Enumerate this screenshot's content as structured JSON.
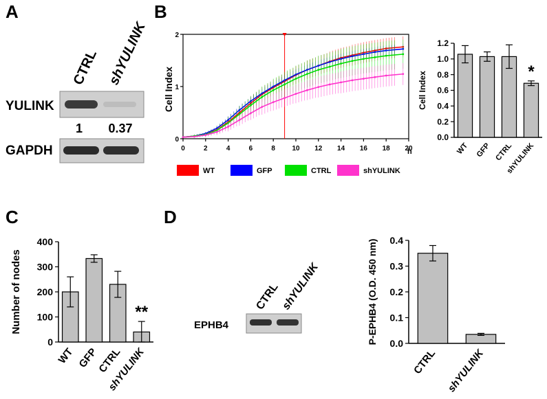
{
  "panels": {
    "A": "A",
    "B": "B",
    "C": "C",
    "D": "D"
  },
  "blotA": {
    "lanes": [
      "CTRL",
      "shYULINK"
    ],
    "rows": [
      "YULINK",
      "GAPDH"
    ],
    "quant": [
      "1",
      "0.37"
    ]
  },
  "blotD": {
    "lanes": [
      "CTRL",
      "shYULINK"
    ],
    "row": "EPHB4"
  },
  "colors": {
    "WT": "#ff0000",
    "GFP": "#0000ff",
    "CTRL": "#00e000",
    "shYULINK": "#ff33cc",
    "bar": "#c0c0c0",
    "marker": "#ff0000"
  },
  "chart_data": [
    {
      "id": "B-line",
      "type": "line",
      "ylabel": "Cell Index",
      "x_unit_label": "h",
      "xlim": [
        0,
        20
      ],
      "ylim": [
        0,
        2
      ],
      "xticks": [
        0,
        2,
        4,
        6,
        8,
        10,
        12,
        14,
        16,
        18,
        20
      ],
      "yticks": [
        0,
        1,
        2
      ],
      "marker_x": 9,
      "x": [
        0,
        1,
        2,
        3,
        4,
        5,
        6,
        7,
        8,
        9,
        10,
        11,
        12,
        13,
        14,
        15,
        16,
        17,
        18,
        19.5
      ],
      "series": [
        {
          "name": "WT",
          "color": "#ff0000",
          "values": [
            0.03,
            0.05,
            0.09,
            0.17,
            0.32,
            0.5,
            0.68,
            0.85,
            0.98,
            1.1,
            1.22,
            1.32,
            1.4,
            1.48,
            1.55,
            1.6,
            1.65,
            1.69,
            1.73,
            1.76
          ],
          "err": [
            0.01,
            0.02,
            0.04,
            0.07,
            0.1,
            0.12,
            0.13,
            0.14,
            0.15,
            0.16,
            0.17,
            0.18,
            0.18,
            0.19,
            0.19,
            0.2,
            0.2,
            0.2,
            0.2,
            0.2
          ]
        },
        {
          "name": "GFP",
          "color": "#0000ff",
          "values": [
            0.03,
            0.05,
            0.1,
            0.2,
            0.36,
            0.55,
            0.72,
            0.87,
            1.0,
            1.12,
            1.23,
            1.32,
            1.4,
            1.47,
            1.53,
            1.58,
            1.62,
            1.66,
            1.69,
            1.72
          ],
          "err": [
            0.01,
            0.02,
            0.03,
            0.05,
            0.07,
            0.08,
            0.08,
            0.09,
            0.09,
            0.1,
            0.1,
            0.1,
            0.1,
            0.1,
            0.1,
            0.1,
            0.1,
            0.1,
            0.1,
            0.1
          ]
        },
        {
          "name": "CTRL",
          "color": "#00e000",
          "values": [
            0.03,
            0.05,
            0.08,
            0.16,
            0.3,
            0.47,
            0.64,
            0.8,
            0.93,
            1.04,
            1.15,
            1.24,
            1.32,
            1.38,
            1.44,
            1.49,
            1.53,
            1.56,
            1.59,
            1.62
          ],
          "err": [
            0.01,
            0.03,
            0.05,
            0.08,
            0.12,
            0.16,
            0.18,
            0.2,
            0.22,
            0.24,
            0.25,
            0.26,
            0.27,
            0.27,
            0.28,
            0.28,
            0.28,
            0.28,
            0.28,
            0.28
          ]
        },
        {
          "name": "shYULINK",
          "color": "#ff33cc",
          "values": [
            0.03,
            0.04,
            0.07,
            0.13,
            0.23,
            0.36,
            0.49,
            0.61,
            0.7,
            0.78,
            0.86,
            0.93,
            0.99,
            1.04,
            1.08,
            1.12,
            1.15,
            1.18,
            1.21,
            1.24
          ],
          "err": [
            0.01,
            0.02,
            0.04,
            0.06,
            0.09,
            0.11,
            0.13,
            0.15,
            0.16,
            0.17,
            0.18,
            0.19,
            0.2,
            0.2,
            0.21,
            0.21,
            0.21,
            0.21,
            0.21,
            0.21
          ]
        }
      ]
    },
    {
      "id": "B-bar",
      "type": "bar",
      "ylabel": "Cell Index",
      "categories": [
        "WT",
        "GFP",
        "CTRL",
        "shYULINK"
      ],
      "values": [
        1.06,
        1.03,
        1.03,
        0.69
      ],
      "errors": [
        0.11,
        0.06,
        0.15,
        0.03
      ],
      "ylim": [
        0,
        1.2
      ],
      "yticks": [
        0.0,
        0.2,
        0.4,
        0.6,
        0.8,
        1.0,
        1.2
      ],
      "ytick_labels": [
        "0.0",
        "0.2",
        "0.4",
        "0.6",
        "0.8",
        "1.0",
        "1.2"
      ],
      "annotations": [
        {
          "category": "shYULINK",
          "text": "*"
        }
      ]
    },
    {
      "id": "C",
      "type": "bar",
      "ylabel": "Number of nodes",
      "categories": [
        "WT",
        "GFP",
        "CTRL",
        "shYULINK"
      ],
      "values": [
        200,
        333,
        230,
        40
      ],
      "errors": [
        60,
        15,
        52,
        42
      ],
      "ylim": [
        0,
        400
      ],
      "yticks": [
        0,
        100,
        200,
        300,
        400
      ],
      "ytick_labels": [
        "0",
        "100",
        "200",
        "300",
        "400"
      ],
      "annotations": [
        {
          "category": "shYULINK",
          "text": "**"
        }
      ]
    },
    {
      "id": "D-bar",
      "type": "bar",
      "ylabel": "P-EPHB4 (O.D. 450 nm)",
      "categories": [
        "CTRL",
        "shYULINK"
      ],
      "values": [
        0.35,
        0.035
      ],
      "errors": [
        0.03,
        0.004
      ],
      "ylim": [
        0,
        0.4
      ],
      "yticks": [
        0.0,
        0.1,
        0.2,
        0.3,
        0.4
      ],
      "ytick_labels": [
        "0.0",
        "0.1",
        "0.2",
        "0.3",
        "0.4"
      ]
    }
  ]
}
